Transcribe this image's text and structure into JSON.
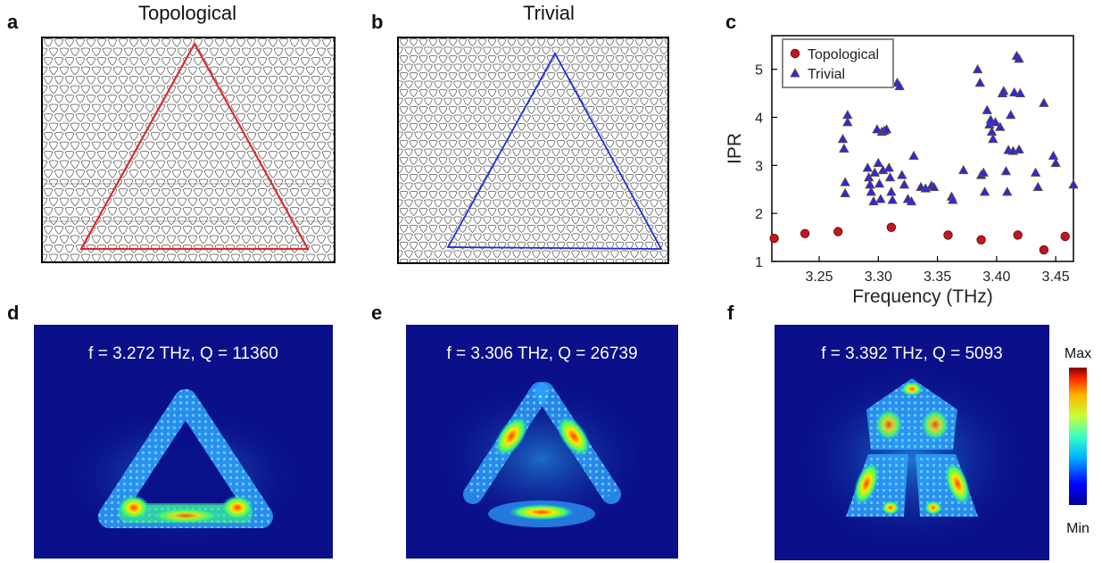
{
  "panels": {
    "a": {
      "label": "a",
      "title": "Topological",
      "triangle_color": "#d62d2d"
    },
    "b": {
      "label": "b",
      "title": "Trivial",
      "triangle_color": "#1f2fd6"
    },
    "c": {
      "label": "c"
    },
    "d": {
      "label": "d",
      "caption": "f = 3.272 THz, Q = 11360"
    },
    "e": {
      "label": "e",
      "caption": "f = 3.306 THz, Q = 26739"
    },
    "f": {
      "label": "f",
      "caption": "f = 3.392 THz, Q = 5093"
    }
  },
  "colorbar": {
    "max_label": "Max",
    "min_label": "Min"
  },
  "chart_data": {
    "type": "scatter",
    "xlabel": "Frequency (THz)",
    "ylabel": "IPR",
    "xlim": [
      3.21,
      3.465
    ],
    "ylim": [
      1.0,
      5.7
    ],
    "xticks": [
      3.25,
      3.3,
      3.35,
      3.4,
      3.45
    ],
    "xtick_labels": [
      "3.25",
      "3.30",
      "3.35",
      "3.40",
      "3.45"
    ],
    "yticks": [
      1,
      2,
      3,
      4,
      5
    ],
    "ytick_labels": [
      "1",
      "2",
      "3",
      "4",
      "5"
    ],
    "legend_position": "top-left",
    "series": [
      {
        "name": "Topological",
        "marker": "circle",
        "color": "#c0171f",
        "points": [
          [
            3.212,
            1.48
          ],
          [
            3.238,
            1.58
          ],
          [
            3.266,
            1.62
          ],
          [
            3.311,
            1.71
          ],
          [
            3.359,
            1.55
          ],
          [
            3.387,
            1.45
          ],
          [
            3.418,
            1.55
          ],
          [
            3.44,
            1.24
          ],
          [
            3.458,
            1.52
          ]
        ]
      },
      {
        "name": "Trivial",
        "marker": "triangle",
        "color": "#2b2bd6",
        "points": [
          [
            3.27,
            3.55
          ],
          [
            3.271,
            3.35
          ],
          [
            3.272,
            2.65
          ],
          [
            3.272,
            2.42
          ],
          [
            3.274,
            4.05
          ],
          [
            3.274,
            3.9
          ],
          [
            3.291,
            2.95
          ],
          [
            3.292,
            2.75
          ],
          [
            3.293,
            2.6
          ],
          [
            3.294,
            2.45
          ],
          [
            3.296,
            2.25
          ],
          [
            3.297,
            2.85
          ],
          [
            3.299,
            3.75
          ],
          [
            3.3,
            3.05
          ],
          [
            3.301,
            2.62
          ],
          [
            3.302,
            2.3
          ],
          [
            3.303,
            3.7
          ],
          [
            3.304,
            2.9
          ],
          [
            3.305,
            3.72
          ],
          [
            3.307,
            3.75
          ],
          [
            3.309,
            2.95
          ],
          [
            3.31,
            2.75
          ],
          [
            3.311,
            2.45
          ],
          [
            3.312,
            2.28
          ],
          [
            3.316,
            4.72
          ],
          [
            3.318,
            4.65
          ],
          [
            3.32,
            2.8
          ],
          [
            3.322,
            2.6
          ],
          [
            3.325,
            2.3
          ],
          [
            3.328,
            2.25
          ],
          [
            3.33,
            3.2
          ],
          [
            3.336,
            2.55
          ],
          [
            3.34,
            2.52
          ],
          [
            3.345,
            2.58
          ],
          [
            3.347,
            2.55
          ],
          [
            3.362,
            2.35
          ],
          [
            3.363,
            2.28
          ],
          [
            3.372,
            2.9
          ],
          [
            3.384,
            5.0
          ],
          [
            3.386,
            4.72
          ],
          [
            3.387,
            2.8
          ],
          [
            3.389,
            2.85
          ],
          [
            3.39,
            2.45
          ],
          [
            3.392,
            4.15
          ],
          [
            3.394,
            3.85
          ],
          [
            3.395,
            3.95
          ],
          [
            3.396,
            3.7
          ],
          [
            3.397,
            3.55
          ],
          [
            3.399,
            3.9
          ],
          [
            3.403,
            3.8
          ],
          [
            3.405,
            4.5
          ],
          [
            3.406,
            4.55
          ],
          [
            3.408,
            2.88
          ],
          [
            3.409,
            2.45
          ],
          [
            3.41,
            3.32
          ],
          [
            3.412,
            4.05
          ],
          [
            3.414,
            3.3
          ],
          [
            3.415,
            4.52
          ],
          [
            3.417,
            5.28
          ],
          [
            3.419,
            5.22
          ],
          [
            3.419,
            3.33
          ],
          [
            3.42,
            4.5
          ],
          [
            3.433,
            2.85
          ],
          [
            3.435,
            2.55
          ],
          [
            3.44,
            4.3
          ],
          [
            3.448,
            3.2
          ],
          [
            3.45,
            3.05
          ],
          [
            3.465,
            2.6
          ]
        ]
      }
    ]
  }
}
